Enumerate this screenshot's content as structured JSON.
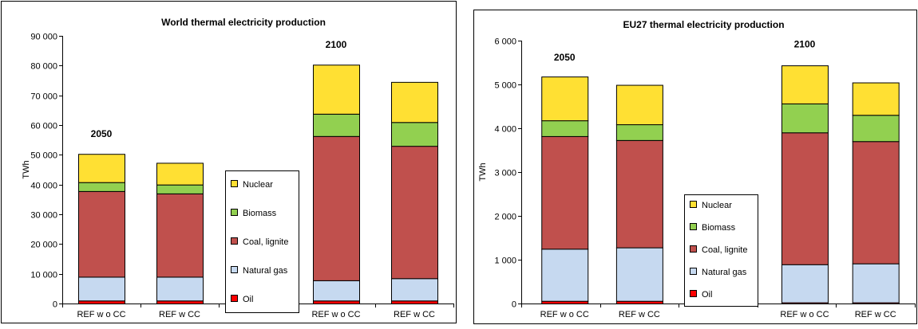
{
  "chart_data": [
    {
      "type": "bar",
      "stacked": true,
      "title": "World thermal electricity production",
      "ylabel": "TWh",
      "ylim": [
        0,
        90000
      ],
      "yticks": [
        0,
        10000,
        20000,
        30000,
        40000,
        50000,
        60000,
        70000,
        80000,
        90000
      ],
      "ytick_labels": [
        "0",
        "10 000",
        "20 000",
        "30 000",
        "40 000",
        "50 000",
        "60 000",
        "70 000",
        "80 000",
        "90 000"
      ],
      "categories": [
        "REF w o CC",
        "REF w  CC",
        "",
        "REF w o CC",
        "REF w  CC"
      ],
      "annotations": [
        {
          "text": "2050",
          "category": 0,
          "y": 56000
        },
        {
          "text": "2100",
          "category": 3,
          "y": 86000
        }
      ],
      "legend": "center-right",
      "grid": false,
      "series": [
        {
          "name": "Oil",
          "color": "#ff0000",
          "values": [
            1000,
            1000,
            0,
            1000,
            1000
          ]
        },
        {
          "name": "Natural gas",
          "color": "#c6d9f0",
          "values": [
            8000,
            8000,
            0,
            6800,
            7500
          ]
        },
        {
          "name": "Coal, lignite",
          "color": "#c0504d",
          "values": [
            28800,
            28000,
            0,
            48500,
            44500
          ]
        },
        {
          "name": "Biomass",
          "color": "#92d050",
          "values": [
            3000,
            3000,
            0,
            7500,
            8000
          ]
        },
        {
          "name": "Nuclear",
          "color": "#ffe033",
          "values": [
            9500,
            7300,
            0,
            16500,
            13500
          ]
        }
      ]
    },
    {
      "type": "bar",
      "stacked": true,
      "title": "EU27 thermal electricity production",
      "ylabel": "TWh",
      "ylim": [
        0,
        6000
      ],
      "yticks": [
        0,
        1000,
        2000,
        3000,
        4000,
        5000,
        6000
      ],
      "ytick_labels": [
        "0",
        "1 000",
        "2 000",
        "3 000",
        "4 000",
        "5 000",
        "6 000"
      ],
      "categories": [
        "REF w o CC",
        "REF w  CC",
        "",
        "REF w o CC",
        "REF w  CC"
      ],
      "annotations": [
        {
          "text": "2050",
          "category": 0,
          "y": 5550
        },
        {
          "text": "2100",
          "category": 3,
          "y": 5850
        }
      ],
      "legend": "bottom-center",
      "grid": false,
      "series": [
        {
          "name": "Oil",
          "color": "#ff0000",
          "values": [
            60,
            60,
            0,
            25,
            25
          ]
        },
        {
          "name": "Natural gas",
          "color": "#c6d9f0",
          "values": [
            1190,
            1220,
            0,
            870,
            890
          ]
        },
        {
          "name": "Coal, lignite",
          "color": "#c0504d",
          "values": [
            2570,
            2450,
            0,
            3010,
            2790
          ]
        },
        {
          "name": "Biomass",
          "color": "#92d050",
          "values": [
            360,
            360,
            0,
            660,
            600
          ]
        },
        {
          "name": "Nuclear",
          "color": "#ffe033",
          "values": [
            1000,
            900,
            0,
            870,
            740
          ]
        }
      ]
    }
  ]
}
